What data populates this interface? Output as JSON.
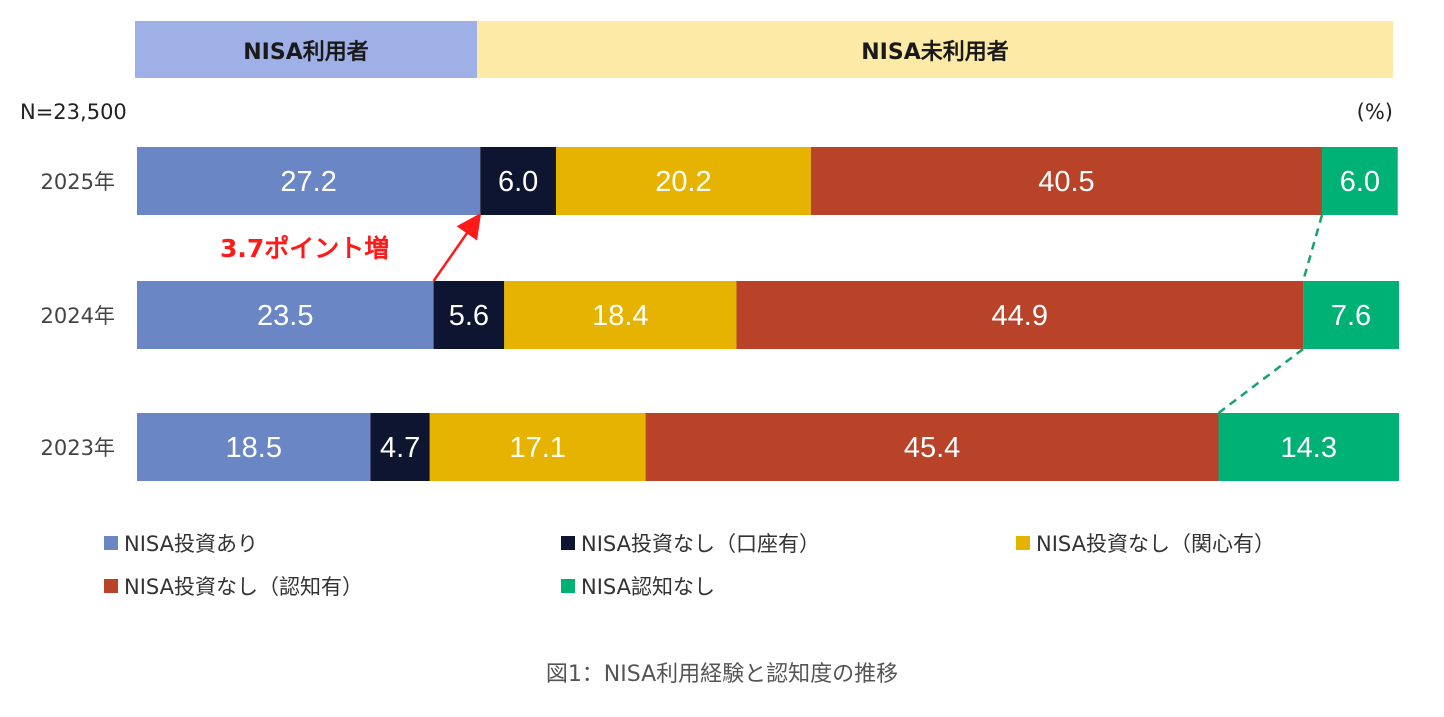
{
  "header": {
    "user_label": "NISA利用者",
    "nonuser_label": "NISA未利用者"
  },
  "sample_text": "N=23,500",
  "unit_text": "(%)",
  "annotation": "3.7ポイント増",
  "caption": "図1：NISA利用経験と認知度の推移",
  "colors": {
    "invest": "#6a86c4",
    "account": "#0d1530",
    "interest": "#e6b400",
    "aware": "#b84328",
    "unaware": "#00b176",
    "annotation": "#ff1a1a",
    "connector": "#16a36c"
  },
  "chart_data": {
    "type": "bar",
    "orientation": "horizontal",
    "stacked": true,
    "categories": [
      "2025年",
      "2024年",
      "2023年"
    ],
    "series": [
      {
        "name": "NISA投資あり",
        "values": [
          27.2,
          23.5,
          18.5
        ]
      },
      {
        "name": "NISA投資なし（口座有）",
        "values": [
          6.0,
          5.6,
          4.7
        ]
      },
      {
        "name": "NISA投資なし（関心有）",
        "values": [
          20.2,
          18.4,
          17.1
        ]
      },
      {
        "name": "NISA投資なし（認知有）",
        "values": [
          40.5,
          44.9,
          45.4
        ]
      },
      {
        "name": "NISA認知なし",
        "values": [
          6.0,
          7.6,
          14.3
        ]
      }
    ],
    "xlim": [
      0,
      100
    ],
    "legend_position": "bottom"
  }
}
